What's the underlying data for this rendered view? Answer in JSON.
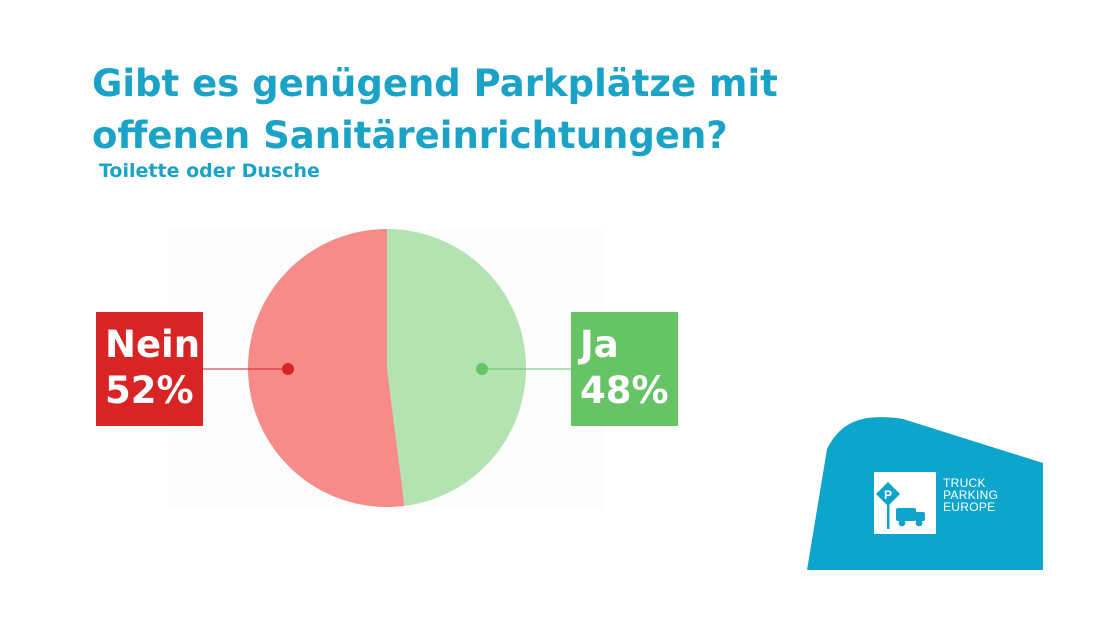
{
  "colors": {
    "title": "#1aa3c6",
    "nein": "#d82424",
    "nein_slice": "#f68c8a",
    "ja": "#66c466",
    "ja_slice": "#b3e3b1",
    "brand": "#0ea5cc"
  },
  "title": "Gibt es genügend Parkplätze mit offenen Sanitäreinrichtungen?",
  "subtitle": "Toilette oder Dusche",
  "labels": {
    "nein": {
      "name": "Nein",
      "value": "52%"
    },
    "ja": {
      "name": "Ja",
      "value": "48%"
    }
  },
  "chart_data": {
    "type": "pie",
    "title": "Gibt es genügend Parkplätze mit offenen Sanitäreinrichtungen?",
    "subtitle": "Toilette oder Dusche",
    "categories": [
      "Nein",
      "Ja"
    ],
    "values": [
      52,
      48
    ],
    "unit": "%",
    "legend": "none"
  },
  "brand": {
    "lines": [
      "TRUCK",
      "PARKING",
      "EUROPE"
    ],
    "logo_icon": "parking-sign-truck-icon"
  }
}
